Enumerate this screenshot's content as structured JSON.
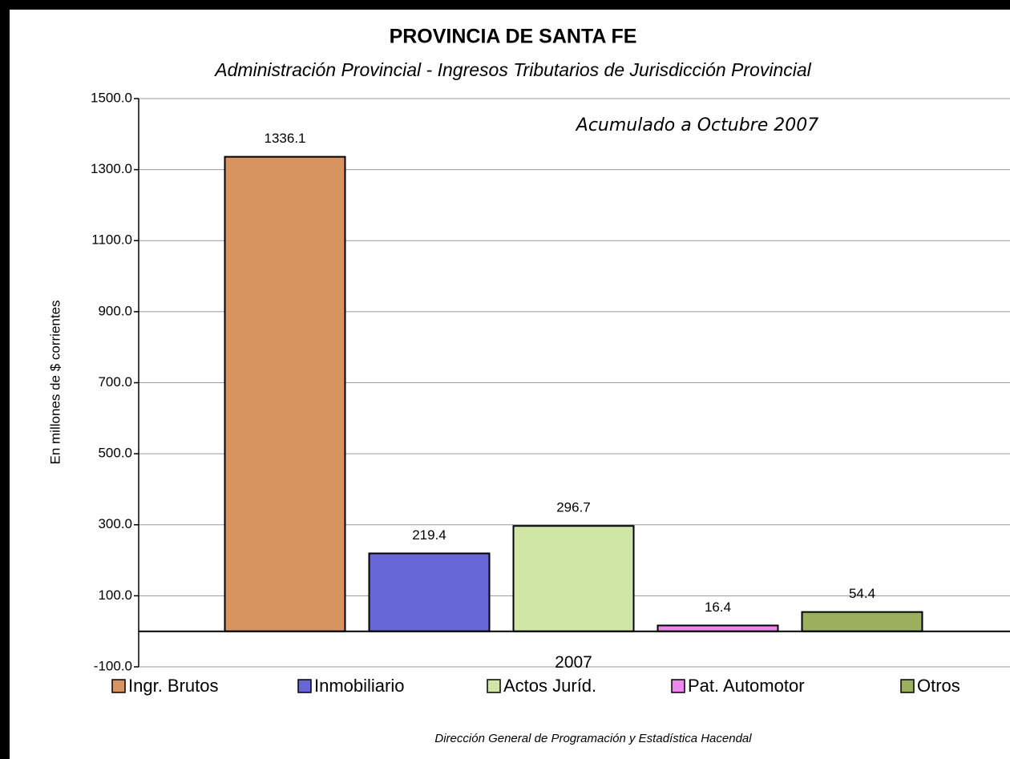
{
  "chart_data": {
    "type": "bar",
    "title": "PROVINCIA DE SANTA FE",
    "subtitle": "Administración Provincial - Ingresos Tributarios de Jurisdicción Provincial",
    "annotation": "Acumulado a Octubre 2007",
    "ylabel": "En millones de $ corrientes",
    "footer": "Dirección General de Programación y Estadística Hacendal",
    "categories": [
      "2007"
    ],
    "series": [
      {
        "name": "Ingr. Brutos",
        "color": "#d79461",
        "values": [
          1336.1
        ]
      },
      {
        "name": "Inmobiliario",
        "color": "#6666d6",
        "values": [
          219.4
        ]
      },
      {
        "name": "Actos Juríd.",
        "color": "#cfe6a7",
        "values": [
          296.7
        ]
      },
      {
        "name": "Pat. Automotor",
        "color": "#ee88ee",
        "values": [
          16.4
        ]
      },
      {
        "name": "Otros",
        "color": "#9caf5e",
        "values": [
          54.4
        ]
      }
    ],
    "ylim": [
      -100,
      1500
    ],
    "yticks": [
      {
        "value": -100,
        "label": "-100.0"
      },
      {
        "value": 100,
        "label": "100.0"
      },
      {
        "value": 300,
        "label": "300.0"
      },
      {
        "value": 500,
        "label": "500.0"
      },
      {
        "value": 700,
        "label": "700.0"
      },
      {
        "value": 900,
        "label": "900.0"
      },
      {
        "value": 1100,
        "label": "1100.0"
      },
      {
        "value": 1300,
        "label": "1300.0"
      },
      {
        "value": 1500,
        "label": "1500.0"
      }
    ],
    "grid": true,
    "legend": "bottom"
  }
}
